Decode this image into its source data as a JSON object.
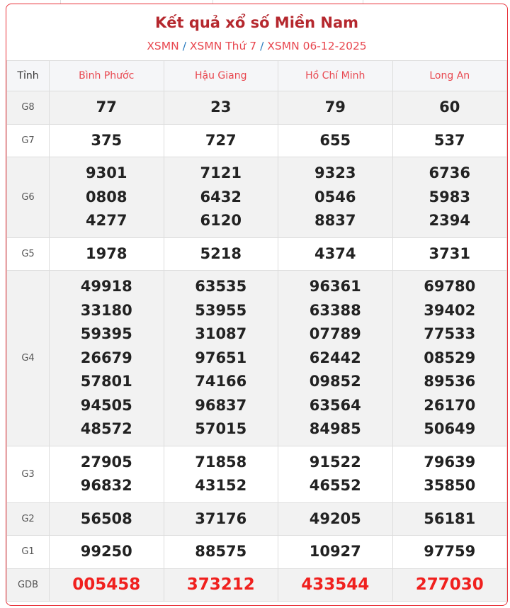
{
  "header": {
    "title": "Kết quả xổ số Miền Nam",
    "breadcrumb": [
      "XSMN",
      "XSMN Thứ 7",
      "XSMN 06-12-2025"
    ],
    "separator": "/"
  },
  "table": {
    "label_header": "Tỉnh",
    "provinces": [
      "Bình Phước",
      "Hậu Giang",
      "Hồ Chí Minh",
      "Long An"
    ],
    "rows": [
      {
        "prize": "G8",
        "values": [
          [
            "77"
          ],
          [
            "23"
          ],
          [
            "79"
          ],
          [
            "60"
          ]
        ]
      },
      {
        "prize": "G7",
        "values": [
          [
            "375"
          ],
          [
            "727"
          ],
          [
            "655"
          ],
          [
            "537"
          ]
        ]
      },
      {
        "prize": "G6",
        "values": [
          [
            "9301",
            "0808",
            "4277"
          ],
          [
            "7121",
            "6432",
            "6120"
          ],
          [
            "9323",
            "0546",
            "8837"
          ],
          [
            "6736",
            "5983",
            "2394"
          ]
        ]
      },
      {
        "prize": "G5",
        "values": [
          [
            "1978"
          ],
          [
            "5218"
          ],
          [
            "4374"
          ],
          [
            "3731"
          ]
        ]
      },
      {
        "prize": "G4",
        "values": [
          [
            "49918",
            "33180",
            "59395",
            "26679",
            "57801",
            "94505",
            "48572"
          ],
          [
            "63535",
            "53955",
            "31087",
            "97651",
            "74166",
            "96837",
            "57015"
          ],
          [
            "96361",
            "63388",
            "07789",
            "62442",
            "09852",
            "63564",
            "84985"
          ],
          [
            "69780",
            "39402",
            "77533",
            "08529",
            "89536",
            "26170",
            "50649"
          ]
        ]
      },
      {
        "prize": "G3",
        "values": [
          [
            "27905",
            "96832"
          ],
          [
            "71858",
            "43152"
          ],
          [
            "91522",
            "46552"
          ],
          [
            "79639",
            "35850"
          ]
        ]
      },
      {
        "prize": "G2",
        "values": [
          [
            "56508"
          ],
          [
            "37176"
          ],
          [
            "49205"
          ],
          [
            "56181"
          ]
        ]
      },
      {
        "prize": "G1",
        "values": [
          [
            "99250"
          ],
          [
            "88575"
          ],
          [
            "10927"
          ],
          [
            "97759"
          ]
        ]
      },
      {
        "prize": "GDB",
        "values": [
          [
            "005458"
          ],
          [
            "373212"
          ],
          [
            "433544"
          ],
          [
            "277030"
          ]
        ]
      }
    ]
  },
  "colors": {
    "accent": "#e8323a",
    "title": "#b5282e",
    "special_prize": "#f0201e"
  }
}
